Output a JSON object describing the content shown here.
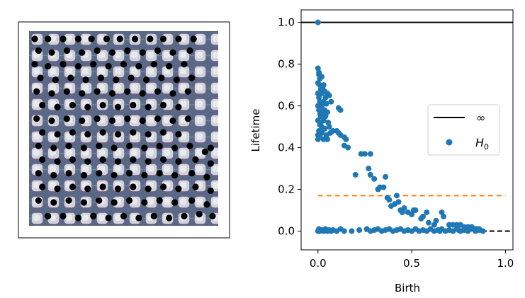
{
  "chart_data": [
    {
      "type": "scatter",
      "panel": "image-with-points",
      "description_note": "",
      "points": [
        [
          0.03,
          0.04
        ],
        [
          0.1,
          0.04
        ],
        [
          0.18,
          0.04
        ],
        [
          0.26,
          0.04
        ],
        [
          0.33,
          0.04
        ],
        [
          0.41,
          0.04
        ],
        [
          0.48,
          0.04
        ],
        [
          0.56,
          0.04
        ],
        [
          0.64,
          0.04
        ],
        [
          0.71,
          0.04
        ],
        [
          0.79,
          0.04
        ],
        [
          0.87,
          0.04
        ],
        [
          0.05,
          0.1
        ],
        [
          0.12,
          0.11
        ],
        [
          0.2,
          0.1
        ],
        [
          0.28,
          0.11
        ],
        [
          0.36,
          0.1
        ],
        [
          0.44,
          0.11
        ],
        [
          0.52,
          0.1
        ],
        [
          0.6,
          0.11
        ],
        [
          0.68,
          0.1
        ],
        [
          0.76,
          0.11
        ],
        [
          0.85,
          0.1
        ],
        [
          0.03,
          0.17
        ],
        [
          0.1,
          0.18
        ],
        [
          0.18,
          0.17
        ],
        [
          0.26,
          0.18
        ],
        [
          0.34,
          0.17
        ],
        [
          0.42,
          0.18
        ],
        [
          0.5,
          0.17
        ],
        [
          0.58,
          0.18
        ],
        [
          0.66,
          0.17
        ],
        [
          0.74,
          0.18
        ],
        [
          0.82,
          0.17
        ],
        [
          0.06,
          0.24
        ],
        [
          0.14,
          0.25
        ],
        [
          0.22,
          0.24
        ],
        [
          0.3,
          0.25
        ],
        [
          0.38,
          0.24
        ],
        [
          0.46,
          0.25
        ],
        [
          0.54,
          0.24
        ],
        [
          0.62,
          0.25
        ],
        [
          0.7,
          0.24
        ],
        [
          0.78,
          0.25
        ],
        [
          0.86,
          0.24
        ],
        [
          0.04,
          0.31
        ],
        [
          0.12,
          0.32
        ],
        [
          0.2,
          0.31
        ],
        [
          0.28,
          0.32
        ],
        [
          0.36,
          0.31
        ],
        [
          0.44,
          0.32
        ],
        [
          0.52,
          0.31
        ],
        [
          0.6,
          0.32
        ],
        [
          0.68,
          0.31
        ],
        [
          0.76,
          0.32
        ],
        [
          0.84,
          0.31
        ],
        [
          0.07,
          0.38
        ],
        [
          0.15,
          0.39
        ],
        [
          0.23,
          0.38
        ],
        [
          0.31,
          0.39
        ],
        [
          0.39,
          0.38
        ],
        [
          0.47,
          0.39
        ],
        [
          0.55,
          0.38
        ],
        [
          0.63,
          0.39
        ],
        [
          0.71,
          0.38
        ],
        [
          0.79,
          0.39
        ],
        [
          0.04,
          0.45
        ],
        [
          0.12,
          0.46
        ],
        [
          0.2,
          0.45
        ],
        [
          0.28,
          0.46
        ],
        [
          0.36,
          0.45
        ],
        [
          0.44,
          0.46
        ],
        [
          0.52,
          0.45
        ],
        [
          0.6,
          0.46
        ],
        [
          0.68,
          0.45
        ],
        [
          0.76,
          0.46
        ],
        [
          0.84,
          0.45
        ],
        [
          0.07,
          0.52
        ],
        [
          0.15,
          0.53
        ],
        [
          0.23,
          0.52
        ],
        [
          0.31,
          0.53
        ],
        [
          0.39,
          0.52
        ],
        [
          0.47,
          0.53
        ],
        [
          0.55,
          0.52
        ],
        [
          0.63,
          0.53
        ],
        [
          0.71,
          0.52
        ],
        [
          0.79,
          0.53
        ],
        [
          0.05,
          0.59
        ],
        [
          0.13,
          0.6
        ],
        [
          0.21,
          0.59
        ],
        [
          0.29,
          0.6
        ],
        [
          0.37,
          0.59
        ],
        [
          0.45,
          0.6
        ],
        [
          0.53,
          0.59
        ],
        [
          0.61,
          0.6
        ],
        [
          0.69,
          0.59
        ],
        [
          0.77,
          0.6
        ],
        [
          0.85,
          0.59
        ],
        [
          0.93,
          0.62
        ],
        [
          0.96,
          0.6
        ],
        [
          0.07,
          0.66
        ],
        [
          0.15,
          0.67
        ],
        [
          0.23,
          0.66
        ],
        [
          0.31,
          0.67
        ],
        [
          0.39,
          0.66
        ],
        [
          0.47,
          0.67
        ],
        [
          0.55,
          0.66
        ],
        [
          0.63,
          0.67
        ],
        [
          0.71,
          0.66
        ],
        [
          0.79,
          0.67
        ],
        [
          0.88,
          0.66
        ],
        [
          0.96,
          0.68
        ],
        [
          0.05,
          0.73
        ],
        [
          0.13,
          0.74
        ],
        [
          0.21,
          0.73
        ],
        [
          0.29,
          0.74
        ],
        [
          0.37,
          0.73
        ],
        [
          0.45,
          0.74
        ],
        [
          0.53,
          0.73
        ],
        [
          0.61,
          0.74
        ],
        [
          0.69,
          0.73
        ],
        [
          0.77,
          0.74
        ],
        [
          0.86,
          0.73
        ],
        [
          0.94,
          0.75
        ],
        [
          0.07,
          0.8
        ],
        [
          0.15,
          0.81
        ],
        [
          0.23,
          0.8
        ],
        [
          0.31,
          0.81
        ],
        [
          0.39,
          0.8
        ],
        [
          0.47,
          0.81
        ],
        [
          0.55,
          0.8
        ],
        [
          0.63,
          0.81
        ],
        [
          0.71,
          0.8
        ],
        [
          0.79,
          0.81
        ],
        [
          0.88,
          0.8
        ],
        [
          0.96,
          0.82
        ],
        [
          0.05,
          0.87
        ],
        [
          0.13,
          0.88
        ],
        [
          0.21,
          0.87
        ],
        [
          0.29,
          0.88
        ],
        [
          0.37,
          0.87
        ],
        [
          0.45,
          0.88
        ],
        [
          0.53,
          0.87
        ],
        [
          0.61,
          0.88
        ],
        [
          0.69,
          0.87
        ],
        [
          0.77,
          0.88
        ],
        [
          0.86,
          0.87
        ],
        [
          0.94,
          0.89
        ],
        [
          0.1,
          0.95
        ],
        [
          0.18,
          0.95
        ],
        [
          0.26,
          0.96
        ],
        [
          0.34,
          0.95
        ],
        [
          0.42,
          0.96
        ],
        [
          0.5,
          0.95
        ],
        [
          0.58,
          0.96
        ],
        [
          0.66,
          0.95
        ],
        [
          0.74,
          0.96
        ],
        [
          0.82,
          0.95
        ],
        [
          0.9,
          0.94
        ],
        [
          0.97,
          0.95
        ]
      ]
    },
    {
      "type": "scatter",
      "panel": "persistence-diagram",
      "xlabel": "Birth",
      "ylabel": "Lifetime",
      "xlim": [
        -0.09,
        1.04
      ],
      "ylim": [
        -0.09,
        1.06
      ],
      "xticks": [
        0.0,
        0.5,
        1.0
      ],
      "xtick_labels": [
        "0.0",
        "0.5",
        "1.0"
      ],
      "yticks": [
        0.0,
        0.2,
        0.4,
        0.6,
        0.8,
        1.0
      ],
      "ytick_labels": [
        "0.0",
        "0.2",
        "0.4",
        "0.6",
        "0.8",
        "1.0"
      ],
      "lines": [
        {
          "name": "∞",
          "kind": "solid",
          "color": "#000000",
          "y": 1.0
        },
        {
          "kind": "dashed",
          "color": "#000000",
          "y": 0.0
        },
        {
          "kind": "dashed",
          "color": "#ff7f0e",
          "y": 0.17
        }
      ],
      "legend": {
        "placement": "center-right",
        "entries": [
          {
            "label": "∞",
            "marker": "line",
            "color": "#000000"
          },
          {
            "label": "H",
            "sub": "0",
            "marker": "dot",
            "color": "#1f77b4"
          }
        ]
      },
      "series": [
        {
          "name": "H0",
          "color": "#1f77b4",
          "points": [
            [
              0.0,
              1.0
            ],
            [
              0.0,
              0.78
            ],
            [
              0.005,
              0.75
            ],
            [
              0.01,
              0.73
            ],
            [
              0.0,
              0.71
            ],
            [
              0.01,
              0.7
            ],
            [
              0.02,
              0.74
            ],
            [
              0.015,
              0.68
            ],
            [
              0.0,
              0.66
            ],
            [
              0.005,
              0.64
            ],
            [
              0.02,
              0.66
            ],
            [
              0.03,
              0.7
            ],
            [
              0.035,
              0.67
            ],
            [
              0.04,
              0.64
            ],
            [
              0.01,
              0.62
            ],
            [
              0.0,
              0.6
            ],
            [
              0.005,
              0.58
            ],
            [
              0.02,
              0.6
            ],
            [
              0.025,
              0.57
            ],
            [
              0.03,
              0.62
            ],
            [
              0.045,
              0.61
            ],
            [
              0.05,
              0.66
            ],
            [
              0.06,
              0.65
            ],
            [
              0.07,
              0.62
            ],
            [
              0.015,
              0.55
            ],
            [
              0.0,
              0.53
            ],
            [
              0.01,
              0.51
            ],
            [
              0.02,
              0.5
            ],
            [
              0.03,
              0.53
            ],
            [
              0.04,
              0.55
            ],
            [
              0.05,
              0.57
            ],
            [
              0.005,
              0.48
            ],
            [
              0.0,
              0.46
            ],
            [
              0.02,
              0.47
            ],
            [
              0.035,
              0.49
            ],
            [
              0.045,
              0.46
            ],
            [
              0.06,
              0.5
            ],
            [
              0.065,
              0.47
            ],
            [
              0.08,
              0.48
            ],
            [
              0.1,
              0.48
            ],
            [
              0.11,
              0.47
            ],
            [
              0.12,
              0.46
            ],
            [
              0.14,
              0.45
            ],
            [
              0.15,
              0.44
            ],
            [
              0.05,
              0.44
            ],
            [
              0.03,
              0.44
            ],
            [
              0.0,
              0.44
            ],
            [
              0.01,
              0.45
            ],
            [
              0.015,
              0.52
            ],
            [
              0.025,
              0.69
            ],
            [
              0.005,
              0.76
            ],
            [
              0.012,
              0.56
            ],
            [
              0.035,
              0.58
            ],
            [
              0.055,
              0.52
            ],
            [
              0.11,
              0.59
            ],
            [
              0.12,
              0.58
            ],
            [
              0.14,
              0.41
            ],
            [
              0.16,
              0.4
            ],
            [
              0.2,
              0.27
            ],
            [
              0.23,
              0.37
            ],
            [
              0.25,
              0.37
            ],
            [
              0.28,
              0.37
            ],
            [
              0.27,
              0.3
            ],
            [
              0.28,
              0.27
            ],
            [
              0.3,
              0.25
            ],
            [
              0.33,
              0.21
            ],
            [
              0.35,
              0.21
            ],
            [
              0.32,
              0.2
            ],
            [
              0.36,
              0.26
            ],
            [
              0.37,
              0.16
            ],
            [
              0.38,
              0.15
            ],
            [
              0.39,
              0.12
            ],
            [
              0.41,
              0.13
            ],
            [
              0.42,
              0.17
            ],
            [
              0.43,
              0.14
            ],
            [
              0.44,
              0.1
            ],
            [
              0.45,
              0.09
            ],
            [
              0.46,
              0.11
            ],
            [
              0.48,
              0.09
            ],
            [
              0.5,
              0.08
            ],
            [
              0.51,
              0.1
            ],
            [
              0.52,
              0.1
            ],
            [
              0.55,
              0.06
            ],
            [
              0.56,
              0.07
            ],
            [
              0.58,
              0.09
            ],
            [
              0.59,
              0.04
            ],
            [
              0.62,
              0.03
            ],
            [
              0.63,
              0.05
            ],
            [
              0.66,
              0.09
            ],
            [
              0.67,
              0.07
            ],
            [
              0.7,
              0.03
            ],
            [
              0.72,
              0.03
            ],
            [
              0.74,
              0.03
            ],
            [
              0.76,
              0.03
            ],
            [
              0.78,
              0.02
            ],
            [
              0.8,
              0.02
            ],
            [
              0.82,
              0.02
            ],
            [
              0.84,
              0.01
            ],
            [
              0.86,
              0.01
            ],
            [
              0.0,
              0.0
            ],
            [
              0.005,
              0.01
            ],
            [
              0.01,
              0.0
            ],
            [
              0.02,
              0.005
            ],
            [
              0.03,
              0.0
            ],
            [
              0.04,
              0.01
            ],
            [
              0.05,
              0.0
            ],
            [
              0.06,
              0.005
            ],
            [
              0.07,
              0.0
            ],
            [
              0.08,
              0.005
            ],
            [
              0.1,
              0.0
            ],
            [
              0.12,
              0.01
            ],
            [
              0.14,
              0.0
            ],
            [
              0.18,
              0.0
            ],
            [
              0.22,
              0.005
            ],
            [
              0.26,
              0.01
            ],
            [
              0.28,
              0.0
            ],
            [
              0.3,
              0.005
            ],
            [
              0.32,
              0.01
            ],
            [
              0.34,
              0.0
            ],
            [
              0.36,
              0.005
            ],
            [
              0.38,
              0.01
            ],
            [
              0.4,
              0.0
            ],
            [
              0.42,
              0.005
            ],
            [
              0.44,
              0.01
            ],
            [
              0.46,
              0.0
            ],
            [
              0.48,
              0.005
            ],
            [
              0.5,
              0.0
            ],
            [
              0.52,
              0.01
            ],
            [
              0.54,
              0.0
            ],
            [
              0.56,
              0.005
            ],
            [
              0.58,
              0.0
            ],
            [
              0.6,
              0.01
            ],
            [
              0.62,
              0.0
            ],
            [
              0.64,
              0.005
            ],
            [
              0.66,
              0.01
            ],
            [
              0.68,
              0.0
            ],
            [
              0.7,
              0.005
            ],
            [
              0.72,
              0.0
            ],
            [
              0.74,
              0.01
            ],
            [
              0.76,
              0.0
            ],
            [
              0.78,
              0.005
            ],
            [
              0.8,
              0.0
            ],
            [
              0.82,
              0.01
            ],
            [
              0.84,
              0.0
            ],
            [
              0.86,
              0.005
            ],
            [
              0.88,
              0.0
            ],
            [
              0.65,
              0.0
            ],
            [
              0.75,
              0.005
            ],
            [
              0.85,
              0.01
            ]
          ]
        }
      ]
    }
  ]
}
